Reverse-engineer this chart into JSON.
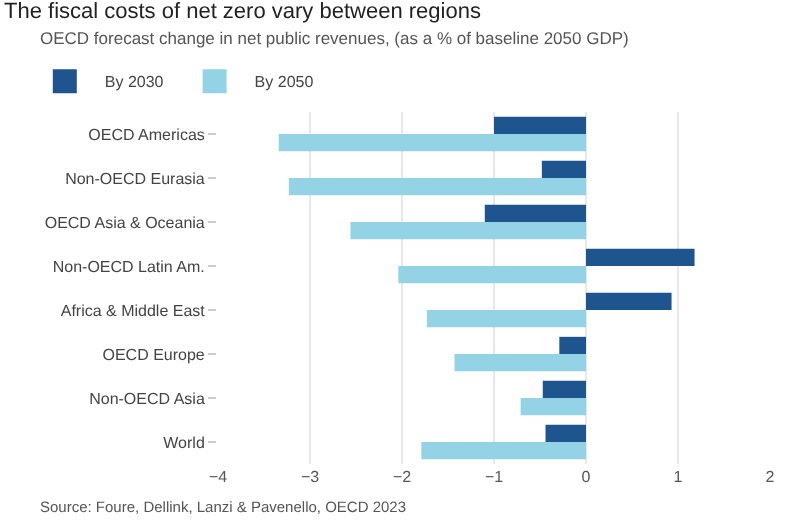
{
  "chart_data": {
    "type": "bar",
    "orientation": "horizontal",
    "title": "The fiscal costs of net zero vary between regions",
    "subtitle": "OECD forecast change in net public revenues, (as a % of baseline 2050 GDP)",
    "categories": [
      "OECD Americas",
      "Non-OECD Eurasia",
      "OECD Asia & Oceania",
      "Non-OECD Latin Am.",
      "Africa & Middle East",
      "OECD Europe",
      "Non-OECD Asia",
      "World"
    ],
    "series": [
      {
        "name": "By 2030",
        "color": "#1f558f",
        "values": [
          -1.0,
          -0.48,
          -1.1,
          1.18,
          0.93,
          -0.29,
          -0.47,
          -0.44
        ]
      },
      {
        "name": "By 2050",
        "color": "#94d3e6",
        "values": [
          -3.34,
          -3.23,
          -2.56,
          -2.04,
          -1.73,
          -1.43,
          -0.71,
          -1.79
        ]
      }
    ],
    "xlim": [
      -4,
      2
    ],
    "xticks": [
      -4,
      -3,
      -2,
      -1,
      0,
      1,
      2
    ],
    "grid": "x",
    "legend": "top left",
    "annotations": [
      "Source: Foure, Dellink, Lanzi & Pavenello, OECD 2023"
    ]
  }
}
